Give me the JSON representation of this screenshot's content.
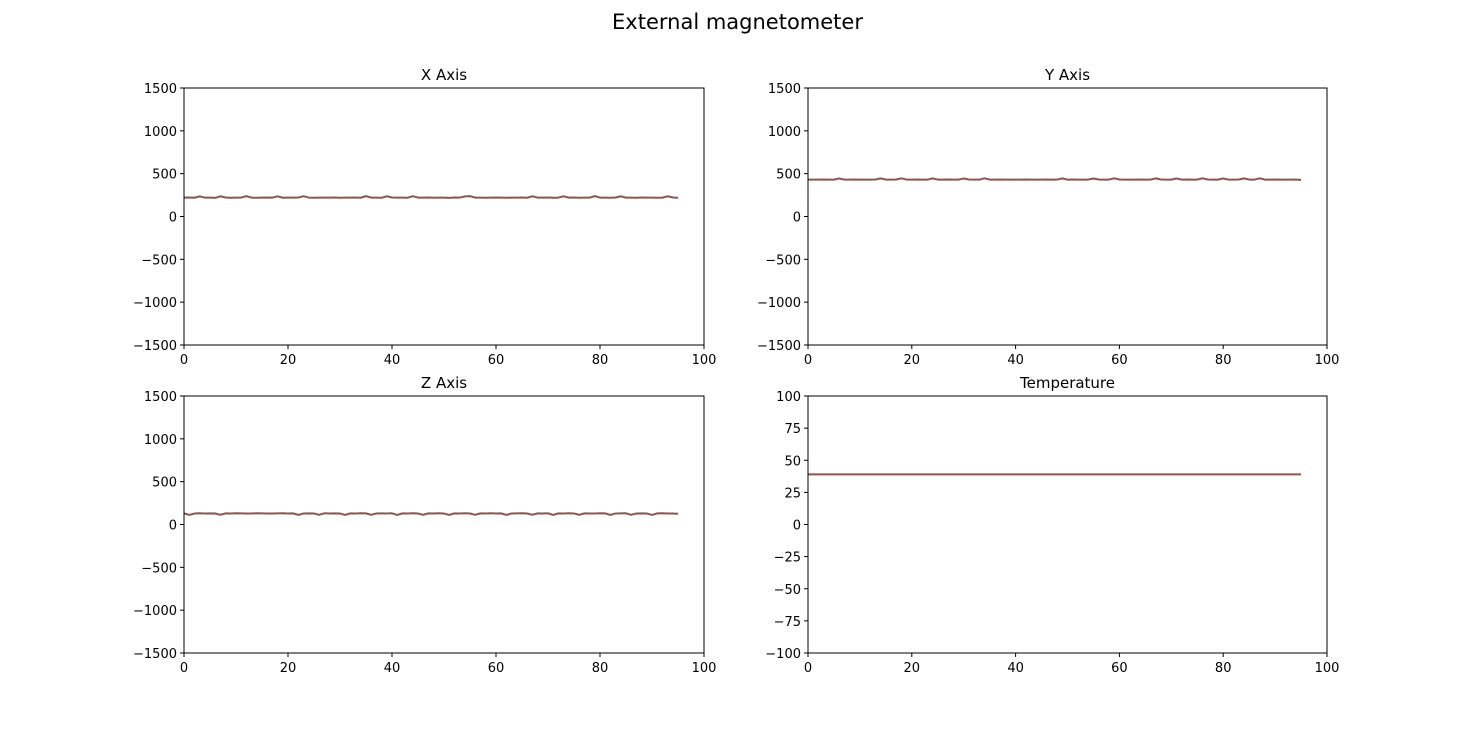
{
  "figure": {
    "title": "External magnetometer"
  },
  "colors": {
    "line": "#8c564b",
    "axes": "#000000"
  },
  "chart_data": [
    {
      "type": "line",
      "title": "X Axis",
      "xlim": [
        0,
        100
      ],
      "ylim": [
        -1500,
        1500
      ],
      "xticks": [
        0,
        20,
        40,
        60,
        80,
        100
      ],
      "yticks": [
        -1500,
        -1000,
        -500,
        0,
        500,
        1000,
        1500
      ],
      "grid": false,
      "series": [
        {
          "x_start": 0,
          "x_step": 1,
          "values": [
            220,
            222,
            219,
            235,
            221,
            220,
            218,
            236,
            222,
            219,
            220,
            221,
            238,
            220,
            219,
            221,
            222,
            220,
            236,
            219,
            220,
            221,
            222,
            237,
            221,
            219,
            220,
            221,
            220,
            222,
            219,
            221,
            220,
            222,
            219,
            238,
            221,
            220,
            219,
            236,
            222,
            221,
            220,
            219,
            237,
            221,
            220,
            222,
            219,
            221,
            220,
            218,
            222,
            221,
            234,
            238,
            221,
            220,
            219,
            221,
            222,
            220,
            219,
            221,
            220,
            222,
            219,
            236,
            221,
            220,
            222,
            219,
            221,
            236,
            220,
            222,
            219,
            221,
            220,
            238,
            221,
            220,
            219,
            222,
            236,
            220,
            221,
            219,
            222,
            220,
            221,
            219,
            220,
            236,
            222,
            219
          ]
        }
      ]
    },
    {
      "type": "line",
      "title": "Y Axis",
      "xlim": [
        0,
        100
      ],
      "ylim": [
        -1500,
        1500
      ],
      "xticks": [
        0,
        20,
        40,
        60,
        80,
        100
      ],
      "yticks": [
        -1500,
        -1000,
        -500,
        0,
        500,
        1000,
        1500
      ],
      "grid": false,
      "series": [
        {
          "x_start": 0,
          "x_step": 1,
          "values": [
            430,
            431,
            430,
            432,
            431,
            430,
            444,
            431,
            430,
            432,
            431,
            430,
            431,
            432,
            445,
            431,
            430,
            432,
            446,
            431,
            430,
            432,
            431,
            430,
            445,
            431,
            430,
            432,
            431,
            430,
            444,
            432,
            431,
            430,
            446,
            431,
            430,
            432,
            431,
            430,
            431,
            430,
            432,
            431,
            430,
            431,
            432,
            430,
            431,
            445,
            430,
            432,
            431,
            430,
            431,
            444,
            432,
            430,
            431,
            446,
            432,
            431,
            430,
            431,
            432,
            430,
            431,
            445,
            432,
            431,
            430,
            444,
            431,
            432,
            430,
            431,
            446,
            432,
            431,
            430,
            444,
            431,
            430,
            432,
            445,
            431,
            430,
            446,
            431,
            430,
            432,
            431,
            430,
            431,
            432,
            426
          ]
        }
      ]
    },
    {
      "type": "line",
      "title": "Z Axis",
      "xlim": [
        0,
        100
      ],
      "ylim": [
        -1500,
        1500
      ],
      "xticks": [
        0,
        20,
        40,
        60,
        80,
        100
      ],
      "yticks": [
        -1500,
        -1000,
        -500,
        0,
        500,
        1000,
        1500
      ],
      "grid": false,
      "series": [
        {
          "x_start": 0,
          "x_step": 1,
          "values": [
            130,
            112,
            128,
            131,
            129,
            130,
            128,
            113,
            130,
            129,
            131,
            130,
            128,
            129,
            131,
            130,
            129,
            128,
            130,
            131,
            129,
            130,
            112,
            129,
            130,
            128,
            113,
            131,
            129,
            130,
            128,
            112,
            130,
            129,
            131,
            130,
            113,
            129,
            130,
            128,
            131,
            112,
            130,
            129,
            131,
            128,
            113,
            130,
            129,
            131,
            128,
            112,
            130,
            129,
            131,
            128,
            113,
            130,
            129,
            131,
            128,
            130,
            112,
            129,
            130,
            131,
            128,
            113,
            130,
            129,
            131,
            112,
            130,
            128,
            131,
            129,
            113,
            130,
            128,
            129,
            131,
            130,
            112,
            129,
            130,
            131,
            113,
            128,
            130,
            129,
            112,
            130,
            131,
            129,
            128,
            125
          ]
        }
      ]
    },
    {
      "type": "line",
      "title": "Temperature",
      "xlim": [
        0,
        100
      ],
      "ylim": [
        -100,
        100
      ],
      "xticks": [
        0,
        20,
        40,
        60,
        80,
        100
      ],
      "yticks": [
        -100,
        -75,
        -50,
        -25,
        0,
        25,
        50,
        75,
        100
      ],
      "grid": false,
      "series": [
        {
          "x_start": 0,
          "x_step": 1,
          "values": [
            39,
            39,
            39,
            39,
            39,
            39,
            39,
            39,
            39,
            39,
            39,
            39,
            39,
            39,
            39,
            39,
            39,
            39,
            39,
            39,
            39,
            39,
            39,
            39,
            39,
            39,
            39,
            39,
            39,
            39,
            39,
            39,
            39,
            39,
            39,
            39,
            39,
            39,
            39,
            39,
            39,
            39,
            39,
            39,
            39,
            39,
            39,
            39,
            39,
            39,
            39,
            39,
            39,
            39,
            39,
            39,
            39,
            39,
            39,
            39,
            39,
            39,
            39,
            39,
            39,
            39,
            39,
            39,
            39,
            39,
            39,
            39,
            39,
            39,
            39,
            39,
            39,
            39,
            39,
            39,
            39,
            39,
            39,
            39,
            39,
            39,
            39,
            39,
            39,
            39,
            39,
            39,
            39,
            39,
            39,
            39
          ]
        }
      ]
    }
  ]
}
